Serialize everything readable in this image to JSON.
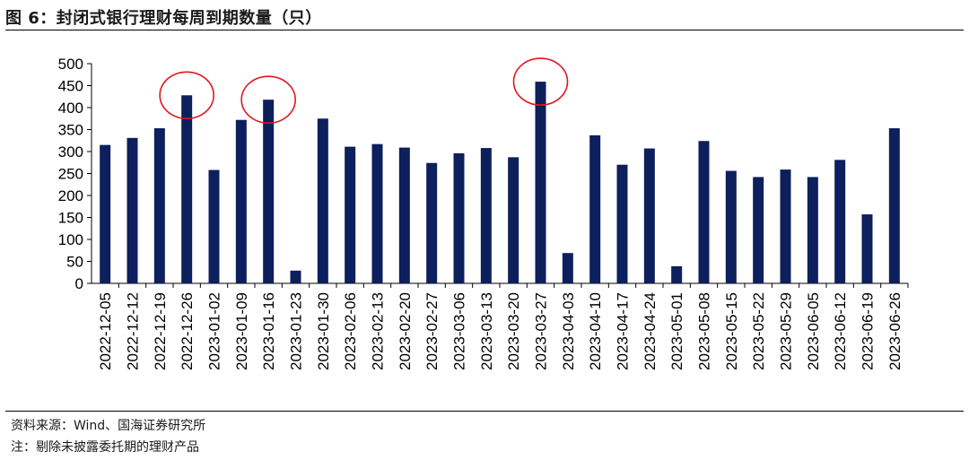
{
  "header": {
    "title": "图 6：封闭式银行理财每周到期数量（只）"
  },
  "footer": {
    "source": "资料来源：Wind、国海证券研究所",
    "note": "注：剔除未披露委托期的理财产品"
  },
  "chart_data": {
    "type": "bar",
    "title": "",
    "xlabel": "",
    "ylabel": "",
    "ylim": [
      0,
      500
    ],
    "yticks": [
      "0",
      "50",
      "100",
      "150",
      "200",
      "250",
      "300",
      "350",
      "400",
      "450",
      "500"
    ],
    "categories": [
      "2022-12-05",
      "2022-12-12",
      "2022-12-19",
      "2022-12-26",
      "2023-01-02",
      "2023-01-09",
      "2023-01-16",
      "2023-01-23",
      "2023-01-30",
      "2023-02-06",
      "2023-02-13",
      "2023-02-20",
      "2023-02-27",
      "2023-03-06",
      "2023-03-13",
      "2023-03-20",
      "2023-03-27",
      "2023-04-03",
      "2023-04-10",
      "2023-04-17",
      "2023-04-24",
      "2023-05-01",
      "2023-05-08",
      "2023-05-15",
      "2023-05-22",
      "2023-05-29",
      "2023-06-05",
      "2023-06-12",
      "2023-06-19",
      "2023-06-26"
    ],
    "values": [
      315,
      331,
      353,
      428,
      258,
      372,
      418,
      29,
      375,
      311,
      317,
      309,
      274,
      296,
      308,
      287,
      459,
      69,
      337,
      270,
      307,
      39,
      324,
      256,
      242,
      259,
      242,
      281,
      157,
      353
    ],
    "bar_color": "#0d1f5c",
    "highlight_color": "#e0161e",
    "highlighted_categories": [
      "2022-12-26",
      "2023-01-16",
      "2023-03-27"
    ],
    "grid": false,
    "legend": "none"
  }
}
